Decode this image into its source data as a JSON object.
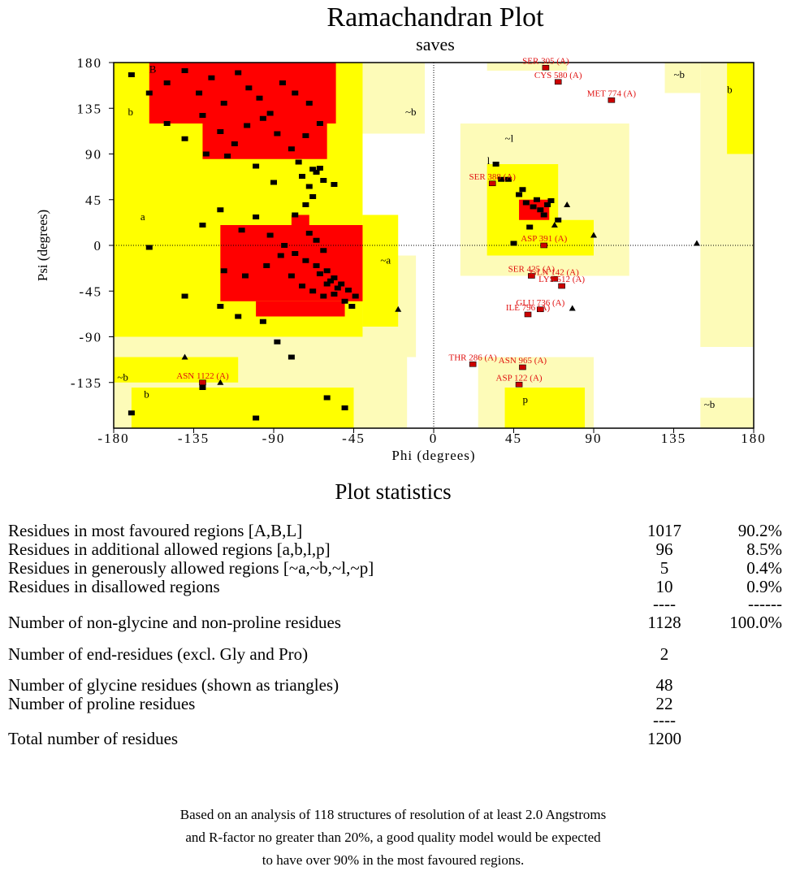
{
  "chart_data": {
    "type": "scatter",
    "title": "Ramachandran Plot",
    "subtitle": "saves",
    "xlabel": "Phi (degrees)",
    "ylabel": "Psi (degrees)",
    "xlim": [
      -180,
      180
    ],
    "ylim": [
      -180,
      180
    ],
    "xticks": [
      -180,
      -135,
      -90,
      -45,
      0,
      45,
      90,
      135,
      180
    ],
    "yticks": [
      -135,
      -90,
      -45,
      0,
      45,
      90,
      135,
      180
    ],
    "region_labels": [
      "B",
      "b",
      "a",
      "~b",
      "~l",
      "l",
      "~a",
      "~b",
      "b",
      "~b",
      "b",
      "p",
      "~b"
    ],
    "series": [
      {
        "marker": "square",
        "color": "#000000",
        "x": [
          -170,
          -160,
          -150,
          -140,
          -132,
          -125,
          -118,
          -110,
          -104,
          -98,
          -92,
          -85,
          -78,
          -70,
          -150,
          -140,
          -130,
          -120,
          -112,
          -105,
          -96,
          -88,
          -80,
          -72,
          -64,
          -128,
          -116,
          -100,
          -90,
          -76,
          -68,
          -74,
          -70,
          -66,
          -62,
          -78,
          -72,
          -68,
          -130,
          -120,
          -108,
          -100,
          -92,
          -84,
          -78,
          -72,
          -66,
          -60,
          -56,
          -52,
          -48,
          -44,
          -80,
          -74,
          -68,
          -62,
          -58,
          -54,
          -50,
          -46,
          -64,
          -60,
          -56,
          -70,
          -66,
          -62,
          -86,
          -94,
          -106,
          -118,
          -160,
          -140,
          -120,
          -96,
          -88,
          -60,
          -50,
          -170,
          -100,
          -80,
          -130,
          -110,
          -56,
          -64,
          35,
          42,
          48,
          52,
          56,
          60,
          64,
          50,
          58,
          62,
          70,
          54,
          66,
          45,
          38
        ],
        "y": [
          168,
          150,
          160,
          172,
          150,
          165,
          140,
          170,
          155,
          145,
          130,
          160,
          150,
          140,
          120,
          105,
          128,
          112,
          100,
          118,
          125,
          110,
          95,
          108,
          120,
          90,
          88,
          78,
          62,
          82,
          75,
          68,
          58,
          72,
          64,
          30,
          40,
          48,
          20,
          35,
          15,
          28,
          10,
          0,
          -8,
          -15,
          -20,
          -25,
          -32,
          -38,
          -44,
          -50,
          -30,
          -40,
          -45,
          -50,
          -35,
          -42,
          -55,
          -60,
          -28,
          -38,
          -48,
          12,
          5,
          -5,
          -10,
          -20,
          -30,
          -25,
          -2,
          -50,
          -60,
          -75,
          -95,
          -150,
          -160,
          -165,
          -170,
          -110,
          -140,
          -70,
          60,
          76,
          80,
          65,
          50,
          42,
          38,
          35,
          40,
          55,
          45,
          30,
          25,
          18,
          44,
          2,
          65
        ]
      },
      {
        "marker": "triangle",
        "color": "#000000",
        "x": [
          -140,
          -120,
          -20,
          75,
          90,
          148,
          78,
          68
        ],
        "y": [
          -110,
          -135,
          -63,
          40,
          10,
          2,
          -62,
          20
        ]
      }
    ],
    "outliers": {
      "color": "#cc0000",
      "labels": [
        "SER 305 (A)",
        "CYS 580 (A)",
        "MET 774 (A)",
        "SER 388 (A)",
        "ASP 391 (A)",
        "SER 425 (A)",
        "GLN 142 (A)",
        "LYS 512 (A)",
        "GLU 736 (A)",
        "ILE 796 (A)",
        "THR 286 (A)",
        "ASN 965 (A)",
        "ASP 122 (A)",
        "ASN 1122 (A)"
      ],
      "x": [
        63,
        70,
        100,
        33,
        62,
        55,
        68,
        72,
        60,
        53,
        22,
        50,
        48,
        -130
      ],
      "y": [
        175,
        161,
        143,
        61,
        0,
        -30,
        -33,
        -40,
        -63,
        -68,
        -117,
        -120,
        -137,
        -135
      ]
    }
  },
  "stats": {
    "title": "Plot statistics",
    "rows": [
      {
        "label": "Residues in most favoured regions  [A,B,L]",
        "count": 1017,
        "percent": "90.2%"
      },
      {
        "label": "Residues in additional allowed regions  [a,b,l,p]",
        "count": 96,
        "percent": "8.5%"
      },
      {
        "label": "Residues in generously allowed regions  [~a,~b,~l,~p]",
        "count": 5,
        "percent": "0.4%"
      },
      {
        "label": "Residues in disallowed regions",
        "count": 10,
        "percent": "0.9%"
      },
      {
        "count": "----",
        "percent": "------"
      },
      {
        "label": "Number of non-glycine and non-proline residues",
        "count": 1128,
        "percent": "100.0%"
      },
      {
        "label": "Number of end-residues (excl. Gly and Pro)",
        "count": 2
      },
      {
        "label": "Number of glycine residues (shown as triangles)",
        "count": 48
      },
      {
        "label": "Number of proline residues",
        "count": 22
      },
      {
        "count": "----"
      },
      {
        "label": "Total number of residues",
        "count": 1200
      }
    ]
  },
  "footnote": [
    "Based on an analysis of 118 structures of resolution of at least 2.0 Angstroms",
    "and R-factor no greater than 20%, a good quality model would be expected",
    "to have over 90% in the most favoured regions."
  ]
}
